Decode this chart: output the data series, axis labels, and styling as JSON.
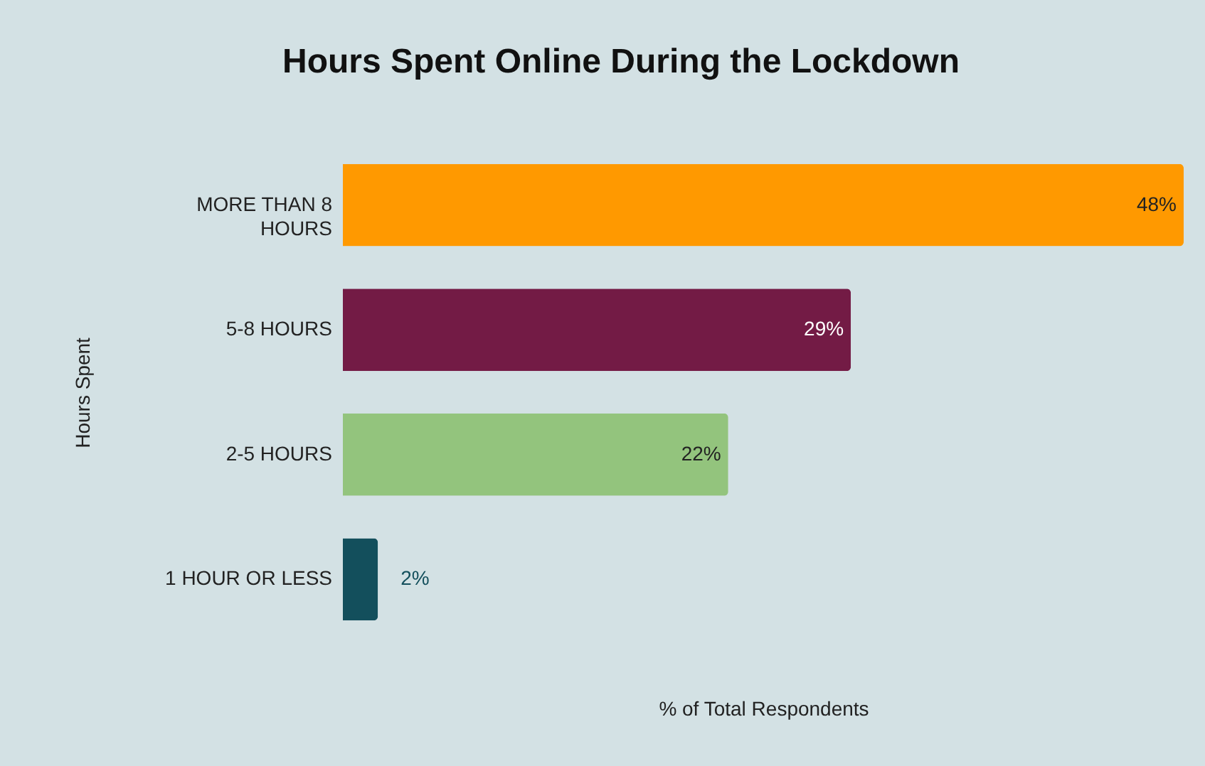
{
  "chart_data": {
    "type": "bar",
    "orientation": "horizontal",
    "title": "Hours Spent Online During the Lockdown",
    "xlabel": "% of Total Respondents",
    "ylabel": "Hours Spent",
    "categories": [
      "MORE THAN 8 HOURS",
      "5-8 HOURS",
      "2-5 HOURS",
      "1 HOUR OR LESS"
    ],
    "values": [
      48,
      29,
      22,
      2
    ],
    "colors": [
      "#ff9900",
      "#731b45",
      "#93c47d",
      "#134f5c"
    ],
    "value_labels": [
      "48%",
      "29%",
      "22%",
      "2%"
    ]
  }
}
